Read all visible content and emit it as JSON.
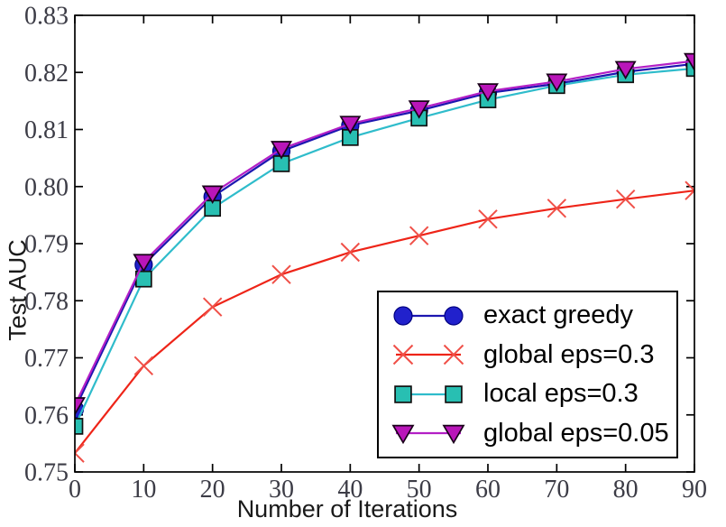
{
  "figure": {
    "background": "#ffffff"
  },
  "chart_data": {
    "type": "line",
    "title": "",
    "xlabel": "Number of Iterations",
    "ylabel": "Test AUC",
    "xlim": [
      0,
      90
    ],
    "ylim": [
      0.75,
      0.83
    ],
    "xticks": [
      0,
      10,
      20,
      30,
      40,
      50,
      60,
      70,
      80,
      90
    ],
    "yticks": [
      0.75,
      0.76,
      0.77,
      0.78,
      0.79,
      0.8,
      0.81,
      0.82,
      0.83
    ],
    "grid": false,
    "legend_position": "lower right",
    "x": [
      0,
      10,
      20,
      30,
      40,
      50,
      60,
      70,
      80,
      90
    ],
    "series": [
      {
        "name": "exact greedy",
        "marker": "circle",
        "line_color": "#1c16b0",
        "marker_fill": "#2121cc",
        "marker_edge": "#000080",
        "values": [
          0.761,
          0.7863,
          0.7982,
          0.8062,
          0.8107,
          0.8133,
          0.8164,
          0.818,
          0.8201,
          0.8215
        ]
      },
      {
        "name": "global eps=0.3",
        "marker": "x",
        "line_color": "#ee2418",
        "marker_fill": "none",
        "marker_edge": "#f05048",
        "values": [
          0.7533,
          0.7686,
          0.7789,
          0.7846,
          0.7885,
          0.7914,
          0.7943,
          0.7962,
          0.7978,
          0.7993
        ]
      },
      {
        "name": "local eps=0.3",
        "marker": "square",
        "line_color": "#2fbccb",
        "marker_fill": "#28bfb2",
        "marker_edge": "#101010",
        "values": [
          0.758,
          0.7838,
          0.7962,
          0.804,
          0.8086,
          0.812,
          0.8152,
          0.8177,
          0.8196,
          0.8207
        ]
      },
      {
        "name": "global eps=0.05",
        "marker": "triangle-down",
        "line_color": "#b31fc6",
        "marker_fill": "#b915b9",
        "marker_edge": "#1a001a",
        "values": [
          0.7617,
          0.7868,
          0.7988,
          0.8066,
          0.811,
          0.8137,
          0.8167,
          0.8184,
          0.8206,
          0.822
        ]
      }
    ],
    "axis_color": "#000000",
    "tick_label_color": "#3c3c46"
  }
}
